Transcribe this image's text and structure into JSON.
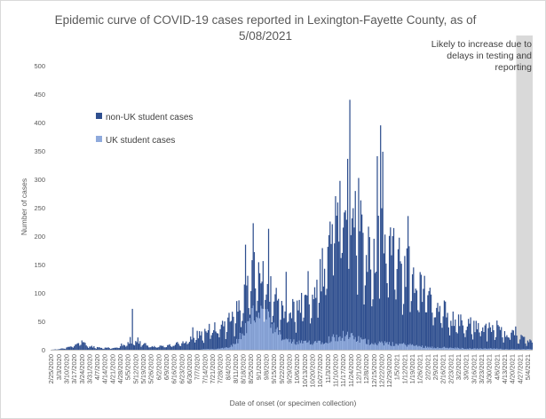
{
  "chart_data": {
    "type": "bar",
    "stacked": true,
    "title_line1": "Epidemic curve of COVID-19 cases reported in Lexington-Fayette County, as of",
    "title_line2": "5/08/2021",
    "xlabel": "Date of onset (or specimen collection)",
    "ylabel": "Number of cases",
    "ylim": [
      0,
      500
    ],
    "yticks": [
      0,
      50,
      100,
      150,
      200,
      250,
      300,
      350,
      400,
      450,
      500
    ],
    "xtick_labels": [
      "2/25/2020",
      "3/3/2020",
      "3/10/2020",
      "3/17/2020",
      "3/24/2020",
      "3/31/2020",
      "4/7/2020",
      "4/14/2020",
      "4/21/2020",
      "4/28/2020",
      "5/5/2020",
      "5/12/2020",
      "5/19/2020",
      "5/26/2020",
      "6/2/2020",
      "6/9/2020",
      "6/16/2020",
      "6/23/2020",
      "6/30/2020",
      "7/7/2020",
      "7/14/2020",
      "7/21/2020",
      "7/28/2020",
      "8/4/2020",
      "8/11/2020",
      "8/18/2020",
      "8/25/2020",
      "9/1/2020",
      "9/8/2020",
      "9/15/2020",
      "9/22/2020",
      "9/29/2020",
      "10/6/2020",
      "10/13/2020",
      "10/20/2020",
      "10/27/2020",
      "11/3/2020",
      "11/10/2020",
      "11/17/2020",
      "11/24/2020",
      "12/1/2020",
      "12/8/2020",
      "12/15/2020",
      "12/22/2020",
      "12/29/2020",
      "1/5/2021",
      "1/12/2021",
      "1/19/2021",
      "1/26/2021",
      "2/2/2021",
      "2/9/2021",
      "2/16/2021",
      "2/23/2021",
      "3/2/2021",
      "3/9/2021",
      "3/16/2021",
      "3/23/2021",
      "3/30/2021",
      "4/6/2021",
      "4/13/2021",
      "4/20/2021",
      "4/27/2021",
      "5/4/2021"
    ],
    "series": [
      {
        "name": "non-UK student cases",
        "color": "#2F4F8F"
      },
      {
        "name": "UK student cases",
        "color": "#8FAADC"
      }
    ],
    "weekly_key_points": {
      "dates": [
        "2/25/2020",
        "3/3/2020",
        "3/10/2020",
        "3/17/2020",
        "3/24/2020",
        "3/31/2020",
        "4/7/2020",
        "4/14/2020",
        "4/21/2020",
        "4/28/2020",
        "5/5/2020",
        "5/12/2020",
        "5/19/2020",
        "5/26/2020",
        "6/2/2020",
        "6/9/2020",
        "6/16/2020",
        "6/23/2020",
        "6/30/2020",
        "7/7/2020",
        "7/14/2020",
        "7/21/2020",
        "7/28/2020",
        "8/4/2020",
        "8/11/2020",
        "8/18/2020",
        "8/25/2020",
        "9/1/2020",
        "9/8/2020",
        "9/15/2020",
        "9/22/2020",
        "9/29/2020",
        "10/6/2020",
        "10/13/2020",
        "10/20/2020",
        "10/27/2020",
        "11/3/2020",
        "11/10/2020",
        "11/17/2020",
        "11/24/2020",
        "12/1/2020",
        "12/8/2020",
        "12/15/2020",
        "12/22/2020",
        "12/29/2020",
        "1/5/2021",
        "1/12/2021",
        "1/19/2021",
        "1/26/2021",
        "2/2/2021",
        "2/9/2021",
        "2/16/2021",
        "2/23/2021",
        "3/2/2021",
        "3/9/2021",
        "3/16/2021",
        "3/23/2021",
        "3/30/2021",
        "4/6/2021",
        "4/13/2021",
        "4/20/2021",
        "4/27/2021",
        "5/4/2021"
      ],
      "non_uk_avg": [
        0,
        1,
        3,
        8,
        12,
        6,
        4,
        3,
        3,
        5,
        10,
        12,
        10,
        6,
        5,
        6,
        8,
        12,
        18,
        24,
        28,
        34,
        38,
        40,
        45,
        52,
        58,
        60,
        55,
        50,
        48,
        50,
        55,
        65,
        80,
        100,
        150,
        190,
        230,
        230,
        200,
        160,
        150,
        170,
        160,
        130,
        130,
        120,
        100,
        80,
        70,
        60,
        50,
        45,
        40,
        38,
        35,
        32,
        30,
        28,
        25,
        20,
        12
      ],
      "uk_avg": [
        0,
        0,
        0,
        0,
        0,
        0,
        0,
        0,
        0,
        0,
        0,
        0,
        0,
        0,
        0,
        0,
        0,
        0,
        0,
        0,
        1,
        1,
        2,
        5,
        12,
        30,
        55,
        70,
        55,
        35,
        20,
        15,
        12,
        12,
        14,
        15,
        18,
        22,
        25,
        22,
        18,
        14,
        12,
        12,
        10,
        10,
        9,
        8,
        6,
        5,
        4,
        4,
        3,
        3,
        2,
        2,
        2,
        2,
        2,
        1,
        1,
        1,
        1
      ]
    },
    "labeled_peaks": [
      {
        "date": "5/9/2020",
        "value": 72
      },
      {
        "date": "8/20/2020",
        "value": 185
      },
      {
        "date": "11/23/2020",
        "value": 440
      },
      {
        "date": "12/21/2020",
        "value": 395
      }
    ],
    "annotation": {
      "lines": [
        "Likely to increase due to",
        "delays in testing and",
        "reporting"
      ],
      "start_date": "4/24/2021",
      "end_date": "5/8/2021",
      "color": "#D9D9D9"
    },
    "legend_position": "upper-left",
    "grid": false
  }
}
